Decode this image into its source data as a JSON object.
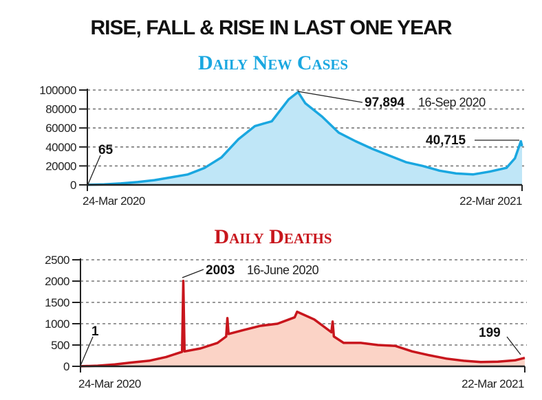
{
  "title": "RISE, FALL & RISE IN LAST ONE YEAR",
  "chart_data": [
    {
      "type": "area",
      "title": "Daily New Cases",
      "color": "#1aa7e0",
      "fill": "#bfe6f7",
      "ylim": [
        0,
        100000
      ],
      "yticks": [
        "100000",
        "80000",
        "60000",
        "40000",
        "20000",
        "0"
      ],
      "ytick_values": [
        100000,
        80000,
        60000,
        40000,
        20000,
        0
      ],
      "xlim": [
        "2020-03-24",
        "2021-03-22"
      ],
      "xtick_labels": [
        "24-Mar 2020",
        "22-Mar 2021"
      ],
      "grid": true,
      "points": [
        [
          "2020-03-24",
          65
        ],
        [
          "2020-04-07",
          500
        ],
        [
          "2020-04-21",
          1500
        ],
        [
          "2020-05-05",
          3000
        ],
        [
          "2020-05-19",
          5000
        ],
        [
          "2020-06-02",
          8000
        ],
        [
          "2020-06-16",
          11000
        ],
        [
          "2020-06-30",
          18000
        ],
        [
          "2020-07-14",
          29000
        ],
        [
          "2020-07-28",
          48000
        ],
        [
          "2020-08-11",
          62000
        ],
        [
          "2020-08-25",
          67000
        ],
        [
          "2020-09-08",
          90000
        ],
        [
          "2020-09-16",
          97894
        ],
        [
          "2020-09-22",
          86000
        ],
        [
          "2020-10-06",
          72000
        ],
        [
          "2020-10-20",
          55000
        ],
        [
          "2020-11-03",
          46000
        ],
        [
          "2020-11-17",
          38000
        ],
        [
          "2020-12-01",
          31000
        ],
        [
          "2020-12-15",
          24000
        ],
        [
          "2020-12-29",
          20000
        ],
        [
          "2021-01-12",
          15000
        ],
        [
          "2021-01-26",
          12000
        ],
        [
          "2021-02-09",
          11000
        ],
        [
          "2021-02-23",
          14000
        ],
        [
          "2021-03-09",
          18000
        ],
        [
          "2021-03-16",
          28000
        ],
        [
          "2021-03-21",
          46000
        ],
        [
          "2021-03-22",
          40715
        ]
      ],
      "annotations": {
        "start": {
          "value": "65"
        },
        "peak": {
          "value": "97,894",
          "date": "16-Sep 2020"
        },
        "end": {
          "value": "40,715"
        }
      }
    },
    {
      "type": "area",
      "title": "Daily Deaths",
      "color": "#c8161d",
      "fill": "#fbd3c6",
      "ylim": [
        0,
        2500
      ],
      "yticks": [
        "2500",
        "2000",
        "1500",
        "1000",
        "500",
        "0"
      ],
      "ytick_values": [
        2500,
        2000,
        1500,
        1000,
        500,
        0
      ],
      "xlim": [
        "2020-03-24",
        "2021-03-22"
      ],
      "xtick_labels": [
        "24-Mar 2020",
        "22-Mar 2021"
      ],
      "grid": true,
      "points": [
        [
          "2020-03-24",
          1
        ],
        [
          "2020-04-07",
          15
        ],
        [
          "2020-04-21",
          45
        ],
        [
          "2020-05-05",
          90
        ],
        [
          "2020-05-19",
          130
        ],
        [
          "2020-06-02",
          220
        ],
        [
          "2020-06-15",
          340
        ],
        [
          "2020-06-16",
          2003
        ],
        [
          "2020-06-17",
          350
        ],
        [
          "2020-06-30",
          420
        ],
        [
          "2020-07-14",
          550
        ],
        [
          "2020-07-21",
          700
        ],
        [
          "2020-07-22",
          1130
        ],
        [
          "2020-07-23",
          760
        ],
        [
          "2020-08-04",
          850
        ],
        [
          "2020-08-18",
          950
        ],
        [
          "2020-09-01",
          1000
        ],
        [
          "2020-09-15",
          1150
        ],
        [
          "2020-09-17",
          1280
        ],
        [
          "2020-10-01",
          1100
        ],
        [
          "2020-10-08",
          950
        ],
        [
          "2020-10-15",
          800
        ],
        [
          "2020-10-16",
          1050
        ],
        [
          "2020-10-17",
          700
        ],
        [
          "2020-10-25",
          550
        ],
        [
          "2020-11-08",
          550
        ],
        [
          "2020-11-22",
          500
        ],
        [
          "2020-12-06",
          480
        ],
        [
          "2020-12-20",
          350
        ],
        [
          "2021-01-03",
          260
        ],
        [
          "2021-01-17",
          180
        ],
        [
          "2021-01-31",
          130
        ],
        [
          "2021-02-14",
          100
        ],
        [
          "2021-02-28",
          110
        ],
        [
          "2021-03-14",
          140
        ],
        [
          "2021-03-22",
          199
        ]
      ],
      "annotations": {
        "start": {
          "value": "1"
        },
        "peak": {
          "value": "2003",
          "date": "16-June 2020"
        },
        "end": {
          "value": "199"
        }
      }
    }
  ]
}
